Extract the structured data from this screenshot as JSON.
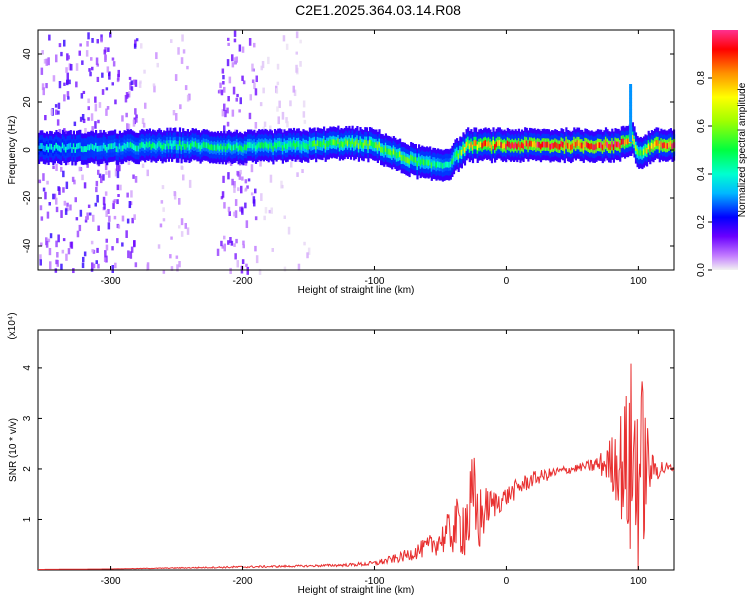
{
  "title": "C2E1.2025.364.03.14.R08",
  "colors": {
    "snr_line": "#e83030",
    "axis": "#000000",
    "spec_background": "#ffffff"
  },
  "chart_data": [
    {
      "type": "heatmap",
      "xlabel": "Height of straight line (km)",
      "ylabel": "Frequency (Hz)",
      "xlim": [
        -355,
        127
      ],
      "ylim": [
        -50,
        50
      ],
      "xticks": [
        -300,
        -200,
        -100,
        0,
        100
      ],
      "yticks": [
        -40,
        -20,
        0,
        20,
        40
      ],
      "colorbar": {
        "label": "Normalized spectral amplitude",
        "range": [
          0.0,
          1.0
        ],
        "ticks": [
          0.0,
          0.2,
          0.4,
          0.6,
          0.8
        ],
        "colormap": "rainbow",
        "placement": "right"
      },
      "ridge": {
        "description_x": [
          -355,
          -300,
          -250,
          -200,
          -150,
          -125,
          -100,
          -80,
          -60,
          -45,
          -30,
          -20,
          0,
          50,
          85,
          95,
          100,
          110,
          127
        ],
        "center_hz": [
          1,
          1,
          2,
          1,
          2,
          3,
          2,
          -3,
          -6,
          -6,
          2,
          2,
          2,
          2,
          2,
          5,
          -2,
          2,
          2
        ],
        "peak_amplitude": [
          0.35,
          0.4,
          0.45,
          0.45,
          0.5,
          0.55,
          0.55,
          0.55,
          0.5,
          0.4,
          0.7,
          0.8,
          0.85,
          0.9,
          0.9,
          0.7,
          0.5,
          0.85,
          0.9
        ]
      },
      "spur": {
        "x": 93,
        "freq_hz": [
          5,
          28
        ],
        "amplitude": 0.3
      },
      "scatter_regions": [
        {
          "x_range": [
            -355,
            -280
          ],
          "amplitude": 0.35
        },
        {
          "x_range": [
            -280,
            -240
          ],
          "amplitude": 0.12
        },
        {
          "x_range": [
            -220,
            -190
          ],
          "amplitude": 0.3
        },
        {
          "x_range": [
            -190,
            -150
          ],
          "amplitude": 0.08
        }
      ]
    },
    {
      "type": "line",
      "xlabel": "Height of straight line (km)",
      "ylabel": "SNR (10 * v/v)",
      "y_multiplier": "(x10⁴)",
      "xlim": [
        -355,
        127
      ],
      "ylim": [
        0,
        4.75
      ],
      "xticks": [
        -300,
        -200,
        -100,
        0,
        100
      ],
      "yticks": [
        1,
        2,
        3,
        4
      ],
      "series": [
        {
          "x": [
            -355,
            -300,
            -250,
            -200,
            -150,
            -120,
            -100,
            -80,
            -60,
            -50,
            -40,
            -30,
            -25,
            -20,
            -15,
            -10,
            0,
            10,
            20,
            40,
            60,
            75,
            85,
            90,
            95,
            100,
            105,
            110,
            127
          ],
          "y": [
            0.01,
            0.02,
            0.04,
            0.06,
            0.08,
            0.1,
            0.13,
            0.25,
            0.45,
            0.6,
            0.8,
            1.0,
            1.2,
            1.0,
            1.25,
            1.3,
            1.45,
            1.65,
            1.8,
            1.95,
            2.05,
            2.1,
            2.15,
            2.0,
            2.1,
            2.1,
            2.05,
            2.0,
            2.02
          ],
          "noise_envelope": [
            0.0,
            0.0,
            0.01,
            0.02,
            0.02,
            0.03,
            0.05,
            0.1,
            0.2,
            0.3,
            0.5,
            0.8,
            1.2,
            0.7,
            0.4,
            0.3,
            0.2,
            0.2,
            0.15,
            0.1,
            0.08,
            0.3,
            0.9,
            1.5,
            2.2,
            2.4,
            1.4,
            0.3,
            0.05
          ]
        }
      ]
    }
  ]
}
